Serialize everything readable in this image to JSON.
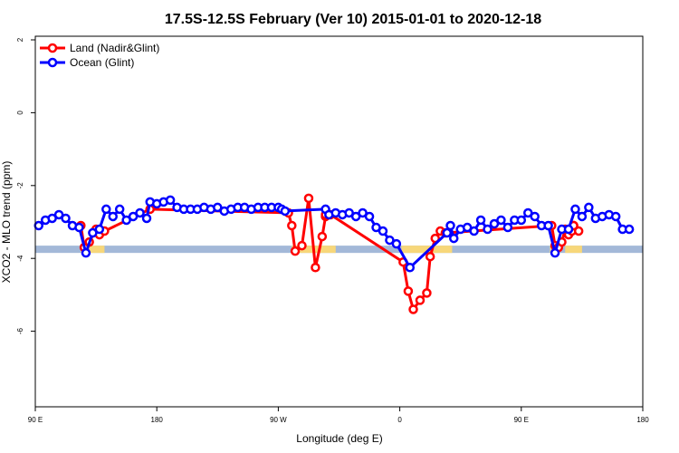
{
  "chart_data": {
    "type": "line",
    "title": "17.5S-12.5S February (Ver 10)   2015-01-01 to 2020-12-18",
    "xlabel": "Longitude (deg E)",
    "ylabel": "XCO2 - MLO trend (ppm)",
    "xlim": [
      90,
      450
    ],
    "ylim": [
      -8,
      2
    ],
    "x_ticks": [
      {
        "value": 90,
        "label": "90 E"
      },
      {
        "value": 162,
        "label": "180"
      },
      {
        "value": 234,
        "label": "90 W"
      },
      {
        "value": 306,
        "label": "0"
      },
      {
        "value": 378,
        "label": "90 E"
      },
      {
        "value": 450,
        "label": "180"
      }
    ],
    "y_ticks": [
      {
        "value": 2,
        "label": "2"
      },
      {
        "value": 0,
        "label": "0"
      },
      {
        "value": -2,
        "label": "-2"
      },
      {
        "value": -4,
        "label": "-4"
      },
      {
        "value": -6,
        "label": "-6"
      }
    ],
    "legend": {
      "placement": "top-left"
    },
    "reference_band": {
      "ymin": -3.85,
      "ymax": -3.65,
      "ocean_color": "#a3b8d8",
      "land_color": "#f7d77a",
      "land_ranges": [
        [
          117,
          131
        ],
        [
          242,
          268
        ],
        [
          307,
          337
        ],
        [
          395,
          401
        ],
        [
          404,
          414
        ]
      ]
    },
    "series": [
      {
        "name": "Land (Nadir&Glint)",
        "color": "#ff0000",
        "x": [
          117,
          119,
          122,
          126,
          128,
          131,
          158,
          240,
          242,
          244,
          248,
          252,
          256,
          260,
          262,
          262,
          265,
          308,
          311,
          314,
          318,
          322,
          324,
          327,
          330,
          333,
          396,
          398,
          400,
          402,
          404,
          406,
          408,
          409,
          409,
          412
        ],
        "y": [
          -3.1,
          -3.7,
          -3.55,
          -3.2,
          -3.35,
          -3.25,
          -2.65,
          -2.75,
          -3.1,
          -3.8,
          -3.65,
          -2.35,
          -4.25,
          -3.4,
          -2.85,
          -2.8,
          -2.8,
          -4.1,
          -4.9,
          -5.4,
          -5.15,
          -4.95,
          -3.95,
          -3.45,
          -3.25,
          -3.3,
          -3.1,
          -3.65,
          -3.7,
          -3.55,
          -3.2,
          -3.35,
          -3.25,
          -3.1,
          -3.1,
          -3.25
        ]
      },
      {
        "name": "Ocean (Glint)",
        "color": "#0000ff",
        "x": [
          92,
          96,
          100,
          104,
          108,
          112,
          116,
          120,
          124,
          128,
          132,
          136,
          140,
          144,
          148,
          152,
          156,
          158,
          162,
          166,
          170,
          174,
          178,
          182,
          186,
          190,
          194,
          198,
          202,
          206,
          210,
          214,
          218,
          222,
          226,
          230,
          234,
          236,
          238,
          262,
          264,
          268,
          272,
          276,
          280,
          284,
          288,
          292,
          296,
          300,
          304,
          312,
          334,
          336,
          338,
          342,
          346,
          350,
          354,
          358,
          362,
          366,
          370,
          374,
          378,
          382,
          386,
          390,
          394,
          398,
          402,
          406,
          410,
          414,
          418,
          422,
          426,
          430,
          434,
          438,
          442
        ],
        "y": [
          -3.1,
          -2.95,
          -2.9,
          -2.8,
          -2.9,
          -3.1,
          -3.15,
          -3.85,
          -3.3,
          -3.2,
          -2.65,
          -2.85,
          -2.65,
          -2.95,
          -2.85,
          -2.75,
          -2.9,
          -2.45,
          -2.5,
          -2.45,
          -2.4,
          -2.6,
          -2.65,
          -2.65,
          -2.65,
          -2.6,
          -2.65,
          -2.6,
          -2.7,
          -2.65,
          -2.6,
          -2.6,
          -2.65,
          -2.6,
          -2.6,
          -2.6,
          -2.6,
          -2.65,
          -2.7,
          -2.65,
          -2.8,
          -2.75,
          -2.8,
          -2.75,
          -2.85,
          -2.75,
          -2.85,
          -3.15,
          -3.25,
          -3.5,
          -3.6,
          -4.25,
          -3.3,
          -3.1,
          -3.45,
          -3.2,
          -3.15,
          -3.25,
          -2.95,
          -3.2,
          -3.05,
          -2.95,
          -3.15,
          -2.95,
          -2.95,
          -2.75,
          -2.85,
          -3.1,
          -3.1,
          -3.85,
          -3.2,
          -3.2,
          -2.65,
          -2.85,
          -2.6,
          -2.9,
          -2.85,
          -2.8,
          -2.85,
          -3.2,
          -3.2
        ]
      }
    ]
  }
}
